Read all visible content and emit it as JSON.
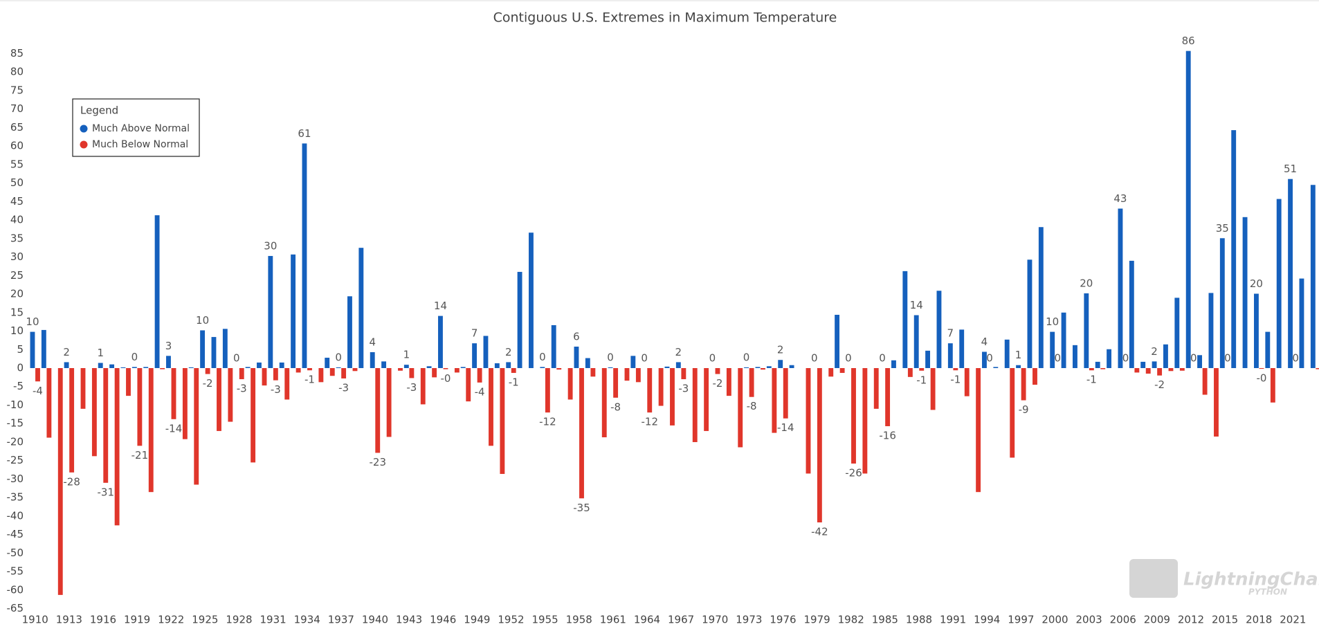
{
  "chart_data": {
    "type": "bar",
    "title": "Contiguous U.S. Extremes in Maximum Temperature",
    "x": [
      1910,
      1911,
      1912,
      1913,
      1914,
      1915,
      1916,
      1917,
      1918,
      1919,
      1920,
      1921,
      1922,
      1923,
      1924,
      1925,
      1926,
      1927,
      1928,
      1929,
      1930,
      1931,
      1932,
      1933,
      1934,
      1935,
      1936,
      1937,
      1938,
      1939,
      1940,
      1941,
      1942,
      1943,
      1944,
      1945,
      1946,
      1947,
      1948,
      1949,
      1950,
      1951,
      1952,
      1953,
      1954,
      1955,
      1956,
      1957,
      1958,
      1959,
      1960,
      1961,
      1962,
      1963,
      1964,
      1965,
      1966,
      1967,
      1968,
      1969,
      1970,
      1971,
      1972,
      1973,
      1974,
      1975,
      1976,
      1977,
      1978,
      1979,
      1980,
      1981,
      1982,
      1983,
      1984,
      1985,
      1986,
      1987,
      1988,
      1989,
      1990,
      1991,
      1992,
      1993,
      1994,
      1995,
      1996,
      1997,
      1998,
      1999,
      2000,
      2001,
      2002,
      2003,
      2004,
      2005,
      2006,
      2007,
      2008,
      2009,
      2010,
      2011,
      2012,
      2013,
      2014,
      2015,
      2016,
      2017,
      2018,
      2019,
      2020,
      2021,
      2022,
      2023
    ],
    "series": [
      {
        "name": "Much Above Normal",
        "color": "#1560bd",
        "values": [
          9.8,
          10.3,
          0,
          1.6,
          0,
          0,
          1.4,
          1,
          0.2,
          0.3,
          0.3,
          41.3,
          3.3,
          0,
          0.2,
          10.2,
          8.4,
          10.6,
          0,
          0.3,
          1.5,
          30.3,
          1.5,
          30.7,
          60.7,
          0,
          2.8,
          0.2,
          19.4,
          32.5,
          4.3,
          1.8,
          0,
          0.9,
          0,
          0.5,
          14.1,
          0,
          0.3,
          6.7,
          8.7,
          1.3,
          1.6,
          26,
          36.6,
          0.3,
          11.6,
          0,
          5.8,
          2.7,
          0,
          0.2,
          0,
          3.3,
          0,
          0,
          0.4,
          1.6,
          0,
          0,
          0,
          0,
          0,
          0.2,
          0.3,
          0.5,
          2.2,
          0.8,
          0,
          0,
          0,
          14.4,
          0,
          0,
          0,
          0,
          2.1,
          26.2,
          14.3,
          4.7,
          20.9,
          6.7,
          10.4,
          0,
          4.4,
          0.3,
          7.7,
          0.8,
          29.3,
          38.1,
          9.8,
          15,
          6.2,
          20.2,
          1.7,
          5.1,
          43.1,
          29,
          1.7,
          1.8,
          6.4,
          19,
          85.7,
          3.5,
          20.3,
          35.1,
          64.3,
          40.8,
          20.1,
          9.8,
          45.7,
          51.1,
          24.2,
          49.5
        ],
        "value_labels": [
          "10",
          null,
          null,
          "2",
          null,
          null,
          "1",
          null,
          null,
          "0",
          null,
          null,
          "3",
          null,
          null,
          "10",
          null,
          null,
          "0",
          null,
          null,
          "30",
          null,
          null,
          "61",
          null,
          null,
          "0",
          null,
          null,
          "4",
          null,
          null,
          "1",
          null,
          null,
          "14",
          null,
          null,
          "7",
          null,
          null,
          "2",
          null,
          null,
          "0",
          null,
          null,
          "6",
          null,
          null,
          "0",
          null,
          null,
          "0",
          null,
          null,
          "2",
          null,
          null,
          "0",
          null,
          null,
          "0",
          null,
          null,
          "2",
          null,
          null,
          "0",
          null,
          null,
          "0",
          null,
          null,
          "0",
          null,
          null,
          "14",
          null,
          null,
          "7",
          null,
          null,
          "4",
          null,
          null,
          "1",
          null,
          null,
          "10",
          null,
          null,
          "20",
          null,
          null,
          "43",
          null,
          null,
          "2",
          null,
          null,
          "86",
          null,
          null,
          "35",
          null,
          null,
          "20",
          null,
          null,
          "51",
          null,
          null
        ]
      },
      {
        "name": "Much Below Normal",
        "color": "#e0362b",
        "values": [
          -3.6,
          -18.8,
          -61.3,
          -28.2,
          -11,
          -23.8,
          -31,
          -42.5,
          -7.5,
          -21,
          -33.5,
          -0.3,
          -13.8,
          -19.2,
          -31.5,
          -1.6,
          -17,
          -14.5,
          -3,
          -25.5,
          -4.7,
          -3.3,
          -8.5,
          -1.2,
          -0.6,
          -3.8,
          -2.1,
          -2.8,
          -0.8,
          0,
          -22.9,
          -18.6,
          -0.7,
          -2.7,
          -9.8,
          -2.5,
          -0.3,
          -1.2,
          -9,
          -3.9,
          -21,
          -28.6,
          -1.3,
          0,
          0,
          -12,
          -0.4,
          -8.5,
          -35.2,
          -2.3,
          -18.7,
          -8,
          -3.4,
          -3.8,
          -12,
          -10.2,
          -15.5,
          -3,
          -20,
          -17,
          -1.6,
          -7.5,
          -21.4,
          -7.8,
          -0.4,
          -17.5,
          -13.6,
          0,
          -28.5,
          -41.7,
          -2.3,
          -1.3,
          -25.8,
          -28.5,
          -11,
          -15.7,
          0,
          -2.4,
          -0.7,
          -11.3,
          0,
          -0.6,
          -7.6,
          -33.5,
          0,
          0,
          -24.2,
          -8.7,
          -4.5,
          0,
          0,
          0,
          0,
          -0.6,
          -0.3,
          0,
          0,
          -1.2,
          -1.5,
          -2,
          -0.8,
          -0.7,
          0,
          -7.2,
          -18.5,
          0,
          0,
          0,
          -0.2,
          -9.3,
          0,
          0,
          0,
          -0.3
        ],
        "value_labels": [
          "-4",
          null,
          null,
          "-28",
          null,
          null,
          "-31",
          null,
          null,
          "-21",
          null,
          null,
          "-14",
          null,
          null,
          "-2",
          null,
          null,
          "-3",
          null,
          null,
          "-3",
          null,
          null,
          "-1",
          null,
          null,
          "-3",
          null,
          null,
          "-23",
          null,
          null,
          "-3",
          null,
          null,
          "-0",
          null,
          null,
          "-4",
          null,
          null,
          "-1",
          null,
          null,
          "-12",
          null,
          null,
          "-35",
          null,
          null,
          "-8",
          null,
          null,
          "-12",
          null,
          null,
          "-3",
          null,
          null,
          "-2",
          null,
          null,
          "-8",
          null,
          null,
          "-14",
          null,
          null,
          "-42",
          null,
          null,
          "-26",
          null,
          null,
          "-16",
          null,
          null,
          "-1",
          null,
          null,
          "-1",
          null,
          null,
          "0",
          null,
          null,
          "-9",
          null,
          null,
          "0",
          null,
          null,
          "-1",
          null,
          null,
          "0",
          null,
          null,
          "-2",
          null,
          null,
          "0",
          null,
          null,
          "0",
          null,
          null,
          "-0",
          null,
          null,
          "0",
          null,
          null
        ]
      }
    ],
    "xlim": [
      1909.1,
      2023.3
    ],
    "xticks": [
      1910,
      1913,
      1916,
      1919,
      1922,
      1925,
      1928,
      1931,
      1934,
      1937,
      1940,
      1943,
      1946,
      1949,
      1952,
      1955,
      1958,
      1961,
      1964,
      1967,
      1970,
      1973,
      1976,
      1979,
      1982,
      1985,
      1988,
      1991,
      1994,
      1997,
      2000,
      2003,
      2006,
      2009,
      2012,
      2015,
      2018,
      2021
    ],
    "ylim": [
      -66,
      89
    ],
    "yticks": [
      -65,
      -60,
      -55,
      -50,
      -45,
      -40,
      -35,
      -30,
      -25,
      -20,
      -15,
      -10,
      -5,
      0,
      5,
      10,
      15,
      20,
      25,
      30,
      35,
      40,
      45,
      50,
      55,
      60,
      65,
      70,
      75,
      80,
      85
    ],
    "grid": false,
    "legend": "upper left",
    "legend_title": "Legend",
    "watermark": "LightningChart®",
    "watermark_sub": "PYTHON"
  }
}
